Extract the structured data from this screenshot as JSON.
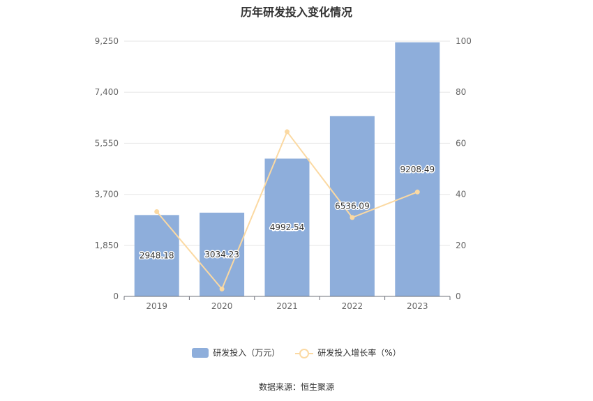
{
  "title": "历年研发投入变化情况",
  "source": "数据来源：恒生聚源",
  "colors": {
    "bar": "#8eaedb",
    "line": "#fbd9a2",
    "grid": "#e6e6e6",
    "axis": "#6e7079"
  },
  "chart_data": {
    "type": "bar",
    "categories": [
      "2019",
      "2020",
      "2021",
      "2022",
      "2023"
    ],
    "series": [
      {
        "name": "研发投入（万元）",
        "type": "bar",
        "axis": "left",
        "values": [
          2948.18,
          3034.23,
          4992.54,
          6536.09,
          9208.49
        ],
        "labels": [
          "2948.18",
          "3034.23",
          "4992.54",
          "6536.09",
          "9208.49"
        ]
      },
      {
        "name": "研发投入增长率（%）",
        "type": "line",
        "axis": "right",
        "values": [
          33.2,
          2.9,
          64.5,
          30.9,
          40.9
        ]
      }
    ],
    "y_left": {
      "ticks": [
        "0",
        "1,850",
        "3,700",
        "5,550",
        "7,400",
        "9,250"
      ],
      "range": [
        0,
        9250
      ]
    },
    "y_right": {
      "ticks": [
        "0",
        "20",
        "40",
        "60",
        "80",
        "100"
      ],
      "range": [
        0,
        100
      ]
    },
    "grid": true,
    "legend_position": "bottom"
  }
}
